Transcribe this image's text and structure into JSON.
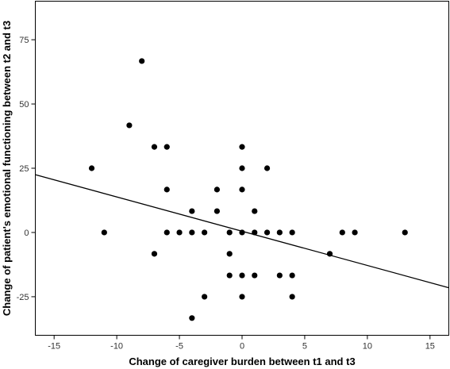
{
  "chart_data": {
    "type": "scatter",
    "title": "",
    "xlabel": "Change of caregiver burden between t1 and t3",
    "ylabel": "Change of patient's emotional functioning between t2 and t3",
    "xlim": [
      -16.5,
      16.5
    ],
    "ylim": [
      -40,
      90
    ],
    "x_ticks": [
      -15,
      -10,
      -5,
      0,
      5,
      10,
      15
    ],
    "y_ticks": [
      -25,
      0,
      25,
      50,
      75
    ],
    "x_tick_labels": [
      "-15",
      "-10",
      "-5",
      "0",
      "5",
      "10",
      "15"
    ],
    "y_tick_labels": [
      "-25",
      "0",
      "25",
      "50",
      "75"
    ],
    "grid": false,
    "legend": "none",
    "points": [
      {
        "x": -12,
        "y": 25
      },
      {
        "x": -11,
        "y": 0
      },
      {
        "x": -9,
        "y": 41.7
      },
      {
        "x": -8,
        "y": 66.7
      },
      {
        "x": -7,
        "y": 33.3
      },
      {
        "x": -7,
        "y": -8.3
      },
      {
        "x": -6,
        "y": 33.3
      },
      {
        "x": -6,
        "y": 16.7
      },
      {
        "x": -6,
        "y": 0
      },
      {
        "x": -5,
        "y": 0
      },
      {
        "x": -4,
        "y": 8.3
      },
      {
        "x": -4,
        "y": 0
      },
      {
        "x": -4,
        "y": -33.3
      },
      {
        "x": -3,
        "y": 0
      },
      {
        "x": -3,
        "y": -25
      },
      {
        "x": -2,
        "y": 16.7
      },
      {
        "x": -2,
        "y": 8.3
      },
      {
        "x": -1,
        "y": 0
      },
      {
        "x": -1,
        "y": -8.3
      },
      {
        "x": -1,
        "y": -16.7
      },
      {
        "x": 0,
        "y": 33.3
      },
      {
        "x": 0,
        "y": 25
      },
      {
        "x": 0,
        "y": 16.7
      },
      {
        "x": 0,
        "y": 0
      },
      {
        "x": 0,
        "y": -16.7
      },
      {
        "x": 0,
        "y": -25
      },
      {
        "x": 1,
        "y": 8.3
      },
      {
        "x": 1,
        "y": 0
      },
      {
        "x": 1,
        "y": -16.7
      },
      {
        "x": 2,
        "y": 25
      },
      {
        "x": 2,
        "y": 0
      },
      {
        "x": 3,
        "y": 0
      },
      {
        "x": 3,
        "y": -16.7
      },
      {
        "x": 4,
        "y": 0
      },
      {
        "x": 4,
        "y": -16.7
      },
      {
        "x": 4,
        "y": -25
      },
      {
        "x": 7,
        "y": -8.3
      },
      {
        "x": 8,
        "y": 0
      },
      {
        "x": 9,
        "y": 0
      },
      {
        "x": 13,
        "y": 0
      }
    ],
    "fit_line": {
      "x": [
        -16.5,
        16.5
      ],
      "y": [
        22.5,
        -21.5
      ]
    },
    "colors": {
      "points": "#000000",
      "line": "#000000",
      "background": "#ffffff"
    }
  }
}
